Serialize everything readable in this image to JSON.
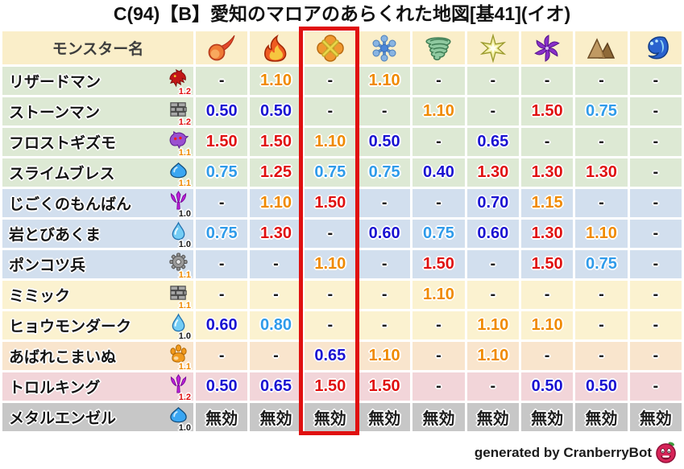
{
  "title": "C(94)【B】愛知のマロアのあらくれた地図[基41](イオ)",
  "table": {
    "name_header": "モンスター名",
    "element_columns": [
      {
        "icon": "mera-fireball-icon"
      },
      {
        "icon": "gira-flame-icon"
      },
      {
        "icon": "io-explosion-icon",
        "highlighted": true
      },
      {
        "icon": "hyado-snowflake-icon"
      },
      {
        "icon": "bagi-tornado-icon"
      },
      {
        "icon": "dein-star-icon"
      },
      {
        "icon": "doruma-pinwheel-icon"
      },
      {
        "icon": "earth-mountain-icon"
      },
      {
        "icon": "water-wave-icon"
      }
    ],
    "rows": [
      {
        "name": "リザードマン",
        "family_icon": "dragon-family-icon",
        "multiplier": "1.2",
        "multiplier_color": "red",
        "tint": "green",
        "values": [
          "-",
          "1.10",
          "-",
          "1.10",
          "-",
          "-",
          "-",
          "-",
          "-"
        ]
      },
      {
        "name": "ストーンマン",
        "family_icon": "stone-brick-family-icon",
        "multiplier": "1.2",
        "multiplier_color": "red",
        "tint": "green",
        "values": [
          "0.50",
          "0.50",
          "-",
          "-",
          "1.10",
          "-",
          "1.50",
          "0.75",
          "-"
        ]
      },
      {
        "name": "フロストギズモ",
        "family_icon": "ghost-family-icon",
        "multiplier": "1.1",
        "multiplier_color": "orange",
        "tint": "green",
        "values": [
          "1.50",
          "1.50",
          "1.10",
          "0.50",
          "-",
          "0.65",
          "-",
          "-",
          "-"
        ]
      },
      {
        "name": "スライムブレス",
        "family_icon": "slime-family-icon",
        "multiplier": "1.1",
        "multiplier_color": "orange",
        "tint": "green",
        "values": [
          "0.75",
          "1.25",
          "0.75",
          "0.75",
          "0.40",
          "1.30",
          "1.30",
          "1.30",
          "-"
        ]
      },
      {
        "name": "じごくのもんばん",
        "family_icon": "demon-trident-family-icon",
        "multiplier": "1.0",
        "multiplier_color": "black",
        "tint": "blue",
        "values": [
          "-",
          "1.10",
          "1.50",
          "-",
          "-",
          "0.70",
          "1.15",
          "-",
          "-"
        ]
      },
      {
        "name": "岩とびあくま",
        "family_icon": "water-drop-family-icon",
        "multiplier": "1.0",
        "multiplier_color": "black",
        "tint": "blue",
        "values": [
          "0.75",
          "1.30",
          "-",
          "0.60",
          "0.75",
          "0.60",
          "1.30",
          "1.10",
          "-"
        ]
      },
      {
        "name": "ポンコツ兵",
        "family_icon": "machine-gear-family-icon",
        "multiplier": "1.1",
        "multiplier_color": "orange",
        "tint": "blue",
        "values": [
          "-",
          "-",
          "1.10",
          "-",
          "1.50",
          "-",
          "1.50",
          "0.75",
          "-"
        ]
      },
      {
        "name": "ミミック",
        "family_icon": "stone-brick-family-icon",
        "multiplier": "1.1",
        "multiplier_color": "orange",
        "tint": "cream",
        "values": [
          "-",
          "-",
          "-",
          "-",
          "1.10",
          "-",
          "-",
          "-",
          "-"
        ]
      },
      {
        "name": "ヒョウモンダーク",
        "family_icon": "water-drop-family-icon",
        "multiplier": "1.0",
        "multiplier_color": "black",
        "tint": "cream",
        "values": [
          "0.60",
          "0.80",
          "-",
          "-",
          "-",
          "1.10",
          "1.10",
          "-",
          "-"
        ]
      },
      {
        "name": "あばれこまいぬ",
        "family_icon": "beast-paw-family-icon",
        "multiplier": "1.1",
        "multiplier_color": "orange",
        "tint": "peach",
        "values": [
          "-",
          "-",
          "0.65",
          "1.10",
          "-",
          "1.10",
          "-",
          "-",
          "-"
        ]
      },
      {
        "name": "トロルキング",
        "family_icon": "demon-trident-family-icon",
        "multiplier": "1.2",
        "multiplier_color": "red",
        "tint": "pink",
        "values": [
          "0.50",
          "0.65",
          "1.50",
          "1.50",
          "-",
          "-",
          "0.50",
          "0.50",
          "-"
        ]
      },
      {
        "name": "メタルエンゼル",
        "family_icon": "slime-family-icon",
        "multiplier": "1.0",
        "multiplier_color": "black",
        "tint": "gray",
        "values": [
          "無効",
          "無効",
          "無効",
          "無効",
          "無効",
          "無効",
          "無効",
          "無効",
          "無効"
        ]
      }
    ],
    "immune_label": "無効"
  },
  "footer": {
    "credit": "generated by CranberryBot",
    "icon": "cranberry-bot-icon"
  },
  "colors": {
    "header_bg": "#faeec9",
    "row_green": "#dde9d4",
    "row_blue": "#d2dfee",
    "row_cream": "#fbf2d0",
    "row_peach": "#f9e5cd",
    "row_pink": "#f2d5d9",
    "row_gray": "#c7c7c7",
    "value_red": "#e01010",
    "value_orange": "#f08a00",
    "value_light_blue": "#2f9bea",
    "value_dark_blue": "#1a12d2",
    "highlight_box": "#e01010"
  }
}
